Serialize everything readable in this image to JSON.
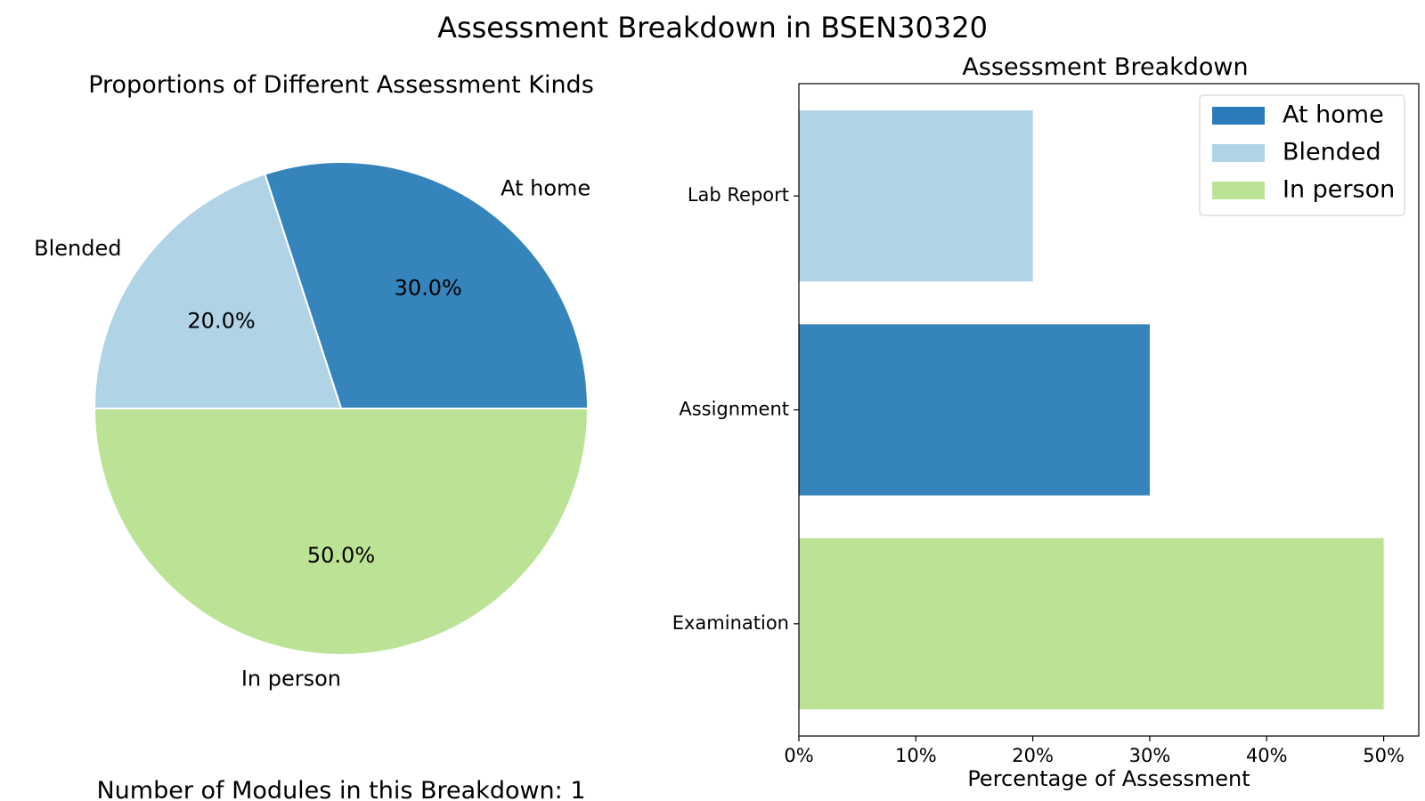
{
  "figure": {
    "title": "Assessment Breakdown in BSEN30320",
    "footnote": "Number of Modules in this Breakdown: 1"
  },
  "colors": {
    "At home": "#3584bb",
    "Blended": "#b0d3e6",
    "In person": "#bce296",
    "legend_at_home": "#2b7bba"
  },
  "chart_data": [
    {
      "type": "pie",
      "title": "Proportions of Different Assessment Kinds",
      "slices": [
        {
          "label": "At home",
          "value": 30.0,
          "pct_label": "30.0%"
        },
        {
          "label": "Blended",
          "value": 20.0,
          "pct_label": "20.0%"
        },
        {
          "label": "In person",
          "value": 50.0,
          "pct_label": "50.0%"
        }
      ]
    },
    {
      "type": "bar",
      "orientation": "horizontal",
      "title": "Assessment Breakdown",
      "categories": [
        "Lab Report",
        "Assignment",
        "Examination"
      ],
      "values": [
        20,
        30,
        50
      ],
      "kinds": [
        "Blended",
        "At home",
        "In person"
      ],
      "xlabel": "Percentage of Assessment",
      "ylabel": "",
      "xlim": [
        0,
        53
      ],
      "xticks": [
        "0%",
        "10%",
        "20%",
        "30%",
        "40%",
        "50%"
      ],
      "legend": {
        "position": "top-right",
        "entries": [
          "At home",
          "Blended",
          "In person"
        ]
      },
      "grid": false
    }
  ]
}
